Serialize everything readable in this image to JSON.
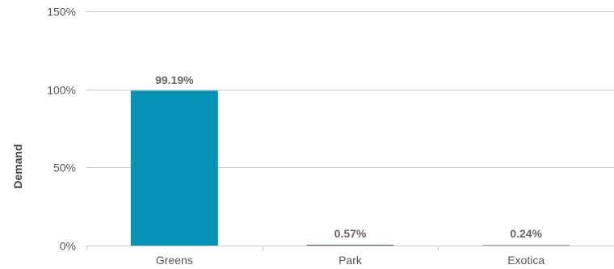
{
  "chart_data": {
    "type": "bar",
    "title": "",
    "xlabel": "",
    "ylabel": "Demand",
    "categories": [
      "Greens",
      "Park",
      "Exotica"
    ],
    "values": [
      99.19,
      0.57,
      0.24
    ],
    "data_labels": [
      "99.19%",
      "0.57%",
      "0.24%"
    ],
    "ylim": [
      0,
      150
    ],
    "yticks": [
      0,
      50,
      100,
      150
    ],
    "ytick_labels": [
      "0%",
      "50%",
      "100%",
      "150%"
    ],
    "grid": true,
    "legend": "none",
    "colors": {
      "bar": "#0493b7",
      "grid": "#c8c8c8",
      "text": "#555555"
    }
  }
}
